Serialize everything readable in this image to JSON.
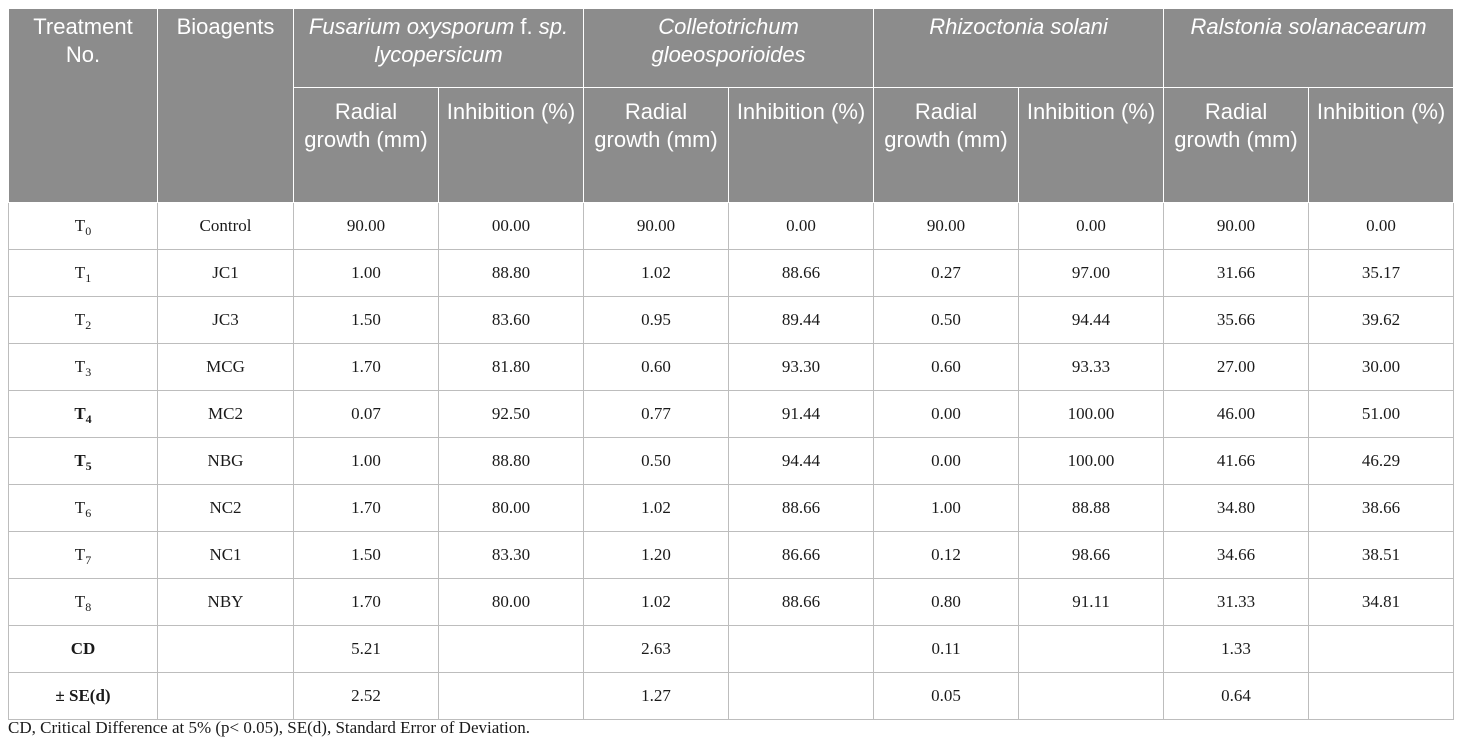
{
  "table": {
    "header": {
      "treatment": "Treatment No.",
      "bioagents": "Bioagents",
      "organisms": [
        {
          "name": "Fusarium oxysporum",
          "suffix": " f.",
          "name2": " sp. lycopersicum"
        },
        {
          "name": "Colletotrichum gloeosporioides",
          "suffix": "",
          "name2": ""
        },
        {
          "name": "Rhizoctonia solani",
          "suffix": "",
          "name2": ""
        },
        {
          "name": "Ralstonia solanacearum",
          "suffix": "",
          "name2": ""
        }
      ],
      "radial_growth": "Radial growth (mm)",
      "inhibition": "Inhibition (%)"
    },
    "rows": [
      {
        "t": "T",
        "sub": "0",
        "bold": false,
        "agent": "Control",
        "v": [
          "90.00",
          "00.00",
          "90.00",
          "0.00",
          "90.00",
          "0.00",
          "90.00",
          "0.00"
        ]
      },
      {
        "t": "T",
        "sub": "1",
        "bold": false,
        "agent": "JC1",
        "v": [
          "1.00",
          "88.80",
          "1.02",
          "88.66",
          "0.27",
          "97.00",
          "31.66",
          "35.17"
        ]
      },
      {
        "t": "T",
        "sub": "2",
        "bold": false,
        "agent": "JC3",
        "v": [
          "1.50",
          "83.60",
          "0.95",
          "89.44",
          "0.50",
          "94.44",
          "35.66",
          "39.62"
        ]
      },
      {
        "t": "T",
        "sub": "3",
        "bold": false,
        "agent": "MCG",
        "v": [
          "1.70",
          "81.80",
          "0.60",
          "93.30",
          "0.60",
          "93.33",
          "27.00",
          "30.00"
        ]
      },
      {
        "t": "T",
        "sub": "4",
        "bold": true,
        "agent": "MC2",
        "v": [
          "0.07",
          "92.50",
          "0.77",
          "91.44",
          "0.00",
          "100.00",
          "46.00",
          "51.00"
        ]
      },
      {
        "t": "T",
        "sub": "5",
        "bold": true,
        "agent": "NBG",
        "v": [
          "1.00",
          "88.80",
          "0.50",
          "94.44",
          "0.00",
          "100.00",
          "41.66",
          "46.29"
        ]
      },
      {
        "t": "T",
        "sub": "6",
        "bold": false,
        "agent": "NC2",
        "v": [
          "1.70",
          "80.00",
          "1.02",
          "88.66",
          "1.00",
          "88.88",
          "34.80",
          "38.66"
        ]
      },
      {
        "t": "T",
        "sub": "7",
        "bold": false,
        "agent": "NC1",
        "v": [
          "1.50",
          "83.30",
          "1.20",
          "86.66",
          "0.12",
          "98.66",
          "34.66",
          "38.51"
        ]
      },
      {
        "t": "T",
        "sub": "8",
        "bold": false,
        "agent": "NBY",
        "v": [
          "1.70",
          "80.00",
          "1.02",
          "88.66",
          "0.80",
          "91.11",
          "31.33",
          "34.81"
        ]
      }
    ],
    "stats": [
      {
        "label": "CD",
        "v": [
          "5.21",
          "",
          "2.63",
          "",
          "0.11",
          "",
          "1.33",
          ""
        ]
      },
      {
        "label": "± SE(d)",
        "v": [
          "2.52",
          "",
          "1.27",
          "",
          "0.05",
          "",
          "0.64",
          ""
        ]
      }
    ]
  },
  "footnote": "CD, Critical Difference at 5% (p< 0.05), SE(d), Standard Error of Deviation."
}
